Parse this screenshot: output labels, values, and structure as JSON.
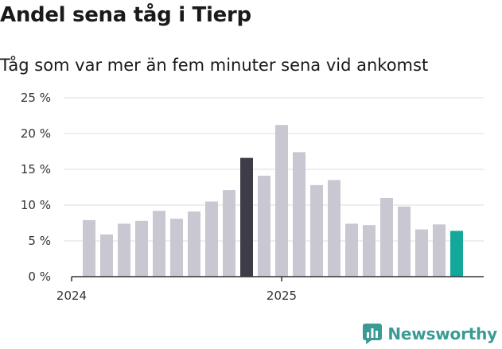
{
  "chart_data": {
    "type": "bar",
    "title": "Andel sena tåg i Tierp",
    "subtitle": "Tåg som var mer än fem minuter sena vid ankomst",
    "x_tick_labels": [
      "2024",
      "2025"
    ],
    "y_ticks": [
      "0 %",
      "5 %",
      "10 %",
      "15 %",
      "20 %",
      "25 %"
    ],
    "ylim": [
      0,
      25
    ],
    "grid": true,
    "values": [
      7.9,
      5.9,
      7.4,
      7.8,
      9.2,
      8.1,
      9.1,
      10.5,
      12.1,
      16.6,
      14.1,
      21.2,
      17.4,
      12.8,
      13.5,
      7.4,
      7.2,
      11.0,
      9.8,
      6.6,
      7.3,
      6.4
    ],
    "colors": {
      "default": "#c9c7d2",
      "highlight": "#3d3c47",
      "latest": "#13a89a"
    }
  },
  "footer": {
    "brand": "Newsworthy",
    "brand_color": "#3a9b95",
    "logo_icon": "bar-chart-icon"
  }
}
